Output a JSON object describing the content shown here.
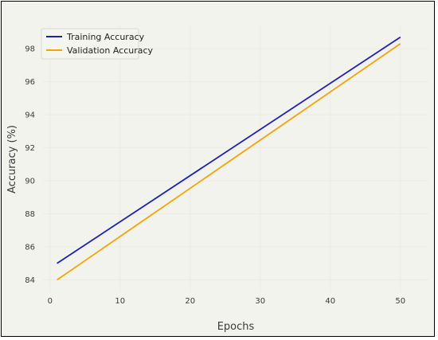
{
  "chart_data": {
    "type": "line",
    "title": "",
    "xlabel": "Epochs",
    "ylabel": "Accuracy (%)",
    "xlim": [
      -1,
      54
    ],
    "ylim": [
      83.3,
      99.5
    ],
    "xticks": [
      0,
      10,
      20,
      30,
      40,
      50
    ],
    "yticks": [
      84,
      86,
      88,
      90,
      92,
      94,
      96,
      98
    ],
    "grid": true,
    "legend_position": "top-left",
    "series": [
      {
        "name": "Training Accuracy",
        "color": "#1f1fb4",
        "x": [
          1,
          50
        ],
        "y": [
          85.0,
          98.7
        ]
      },
      {
        "name": "Validation Accuracy",
        "color": "#f5a30a",
        "x": [
          1,
          50
        ],
        "y": [
          84.0,
          98.3
        ]
      }
    ]
  }
}
